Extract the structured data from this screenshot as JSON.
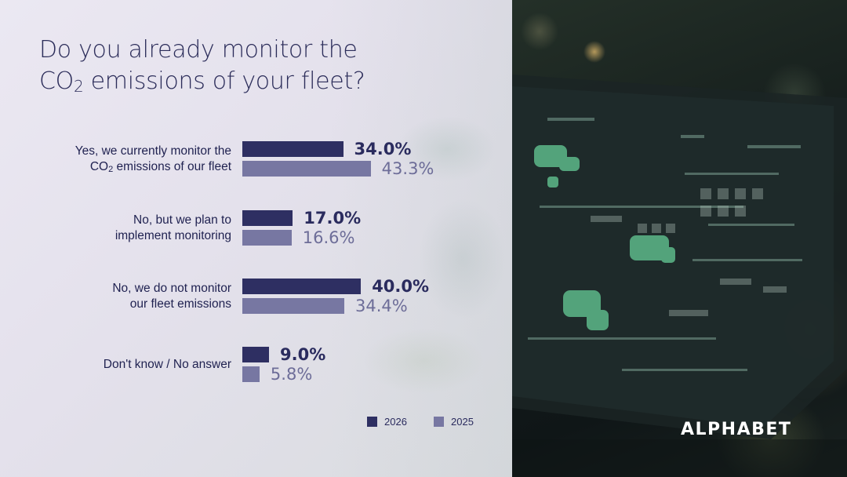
{
  "title": {
    "line1": "Do you already monitor the",
    "line2_prefix": "CO",
    "line2_sub": "2",
    "line2_suffix": " emissions of your fleet?"
  },
  "brand": {
    "logo_text": "ALPHABET"
  },
  "colors": {
    "series_2026": "#2e2f62",
    "series_2025": "#7777a2",
    "title": "#2c2d5a",
    "background": "#e6e3ee"
  },
  "chart_data": {
    "type": "bar",
    "orientation": "horizontal",
    "title": "Do you already monitor the CO₂ emissions of your fleet?",
    "categories": [
      "Yes, we currently monitor the CO₂ emissions of our fleet",
      "No, but we plan to implement monitoring",
      "No, we do not monitor our fleet emissions",
      "Don't know / No answer"
    ],
    "category_lines": [
      [
        {
          "text": "Yes, we currently monitor the"
        },
        {
          "pre": "CO",
          "sub": "2",
          "post": " emissions of our fleet"
        }
      ],
      [
        {
          "text": "No, but we plan to"
        },
        {
          "text": "implement monitoring"
        }
      ],
      [
        {
          "text": "No, we do not monitor"
        },
        {
          "text": "our fleet emissions"
        }
      ],
      [
        {
          "text": "Don't know / No answer"
        }
      ]
    ],
    "series": [
      {
        "name": "2026",
        "values": [
          34.0,
          17.0,
          40.0,
          9.0
        ],
        "labels": [
          "34.0%",
          "17.0%",
          "40.0%",
          "9.0%"
        ]
      },
      {
        "name": "2025",
        "values": [
          43.3,
          16.6,
          34.4,
          5.8
        ],
        "labels": [
          "43.3%",
          "16.6%",
          "34.4%",
          "5.8%"
        ]
      }
    ],
    "unit": "%",
    "legend_position": "bottom-right",
    "grid": false
  }
}
